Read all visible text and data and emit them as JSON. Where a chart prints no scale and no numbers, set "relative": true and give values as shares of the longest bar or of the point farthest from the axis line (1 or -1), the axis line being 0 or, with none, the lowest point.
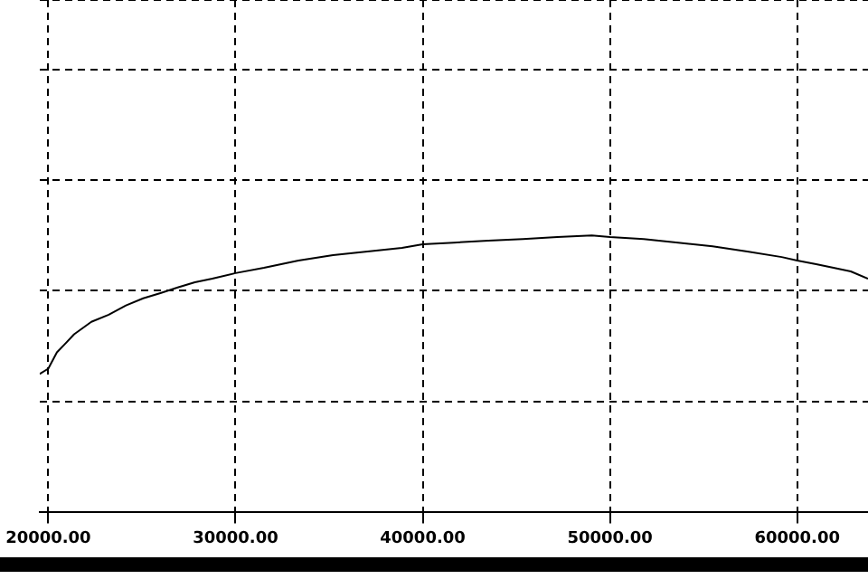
{
  "chart_data": {
    "type": "line",
    "relative": true,
    "grid": true,
    "legend": false,
    "marker": "none",
    "line_style": "solid",
    "xlim": [
      19540,
      63780
    ],
    "xticks": [
      {
        "value": 20000,
        "label": "20000.00"
      },
      {
        "value": 30000,
        "label": "30000.00"
      },
      {
        "value": 40000,
        "label": "40000.00"
      },
      {
        "value": 50000,
        "label": "50000.00"
      },
      {
        "value": 60000,
        "label": "60000.00"
      }
    ],
    "series": [
      {
        "color": "#000000",
        "x": [
          19540,
          20000,
          20460,
          20920,
          21380,
          22300,
          23230,
          24150,
          25070,
          25990,
          26910,
          27830,
          28760,
          30000,
          31520,
          33360,
          35210,
          37050,
          38890,
          40000,
          41660,
          43500,
          45350,
          47190,
          49030,
          50000,
          51800,
          53640,
          55480,
          57330,
          59170,
          60000,
          61010,
          61940,
          62860,
          63780
        ],
        "values": [
          0.5,
          0.519,
          0.578,
          0.61,
          0.643,
          0.688,
          0.714,
          0.747,
          0.773,
          0.792,
          0.812,
          0.831,
          0.844,
          0.864,
          0.883,
          0.909,
          0.929,
          0.942,
          0.955,
          0.968,
          0.974,
          0.981,
          0.987,
          0.994,
          1,
          0.994,
          0.987,
          0.974,
          0.961,
          0.942,
          0.922,
          0.909,
          0.896,
          0.883,
          0.87,
          0.844
        ]
      }
    ]
  }
}
